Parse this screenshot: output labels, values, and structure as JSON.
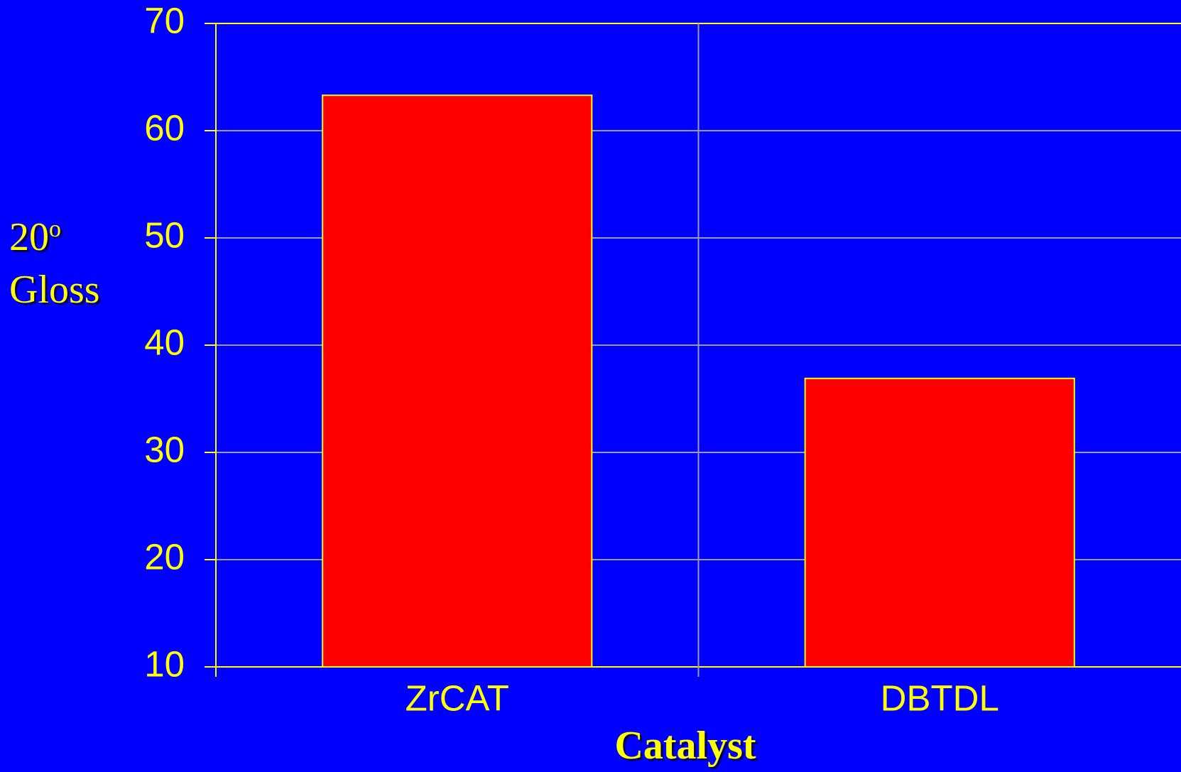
{
  "chart_data": {
    "type": "bar",
    "categories": [
      "ZrCAT",
      "DBTDL"
    ],
    "values": [
      63.3,
      36.9
    ],
    "color": "#ff0000",
    "x_label": "Catalyst",
    "y_label": {
      "text": "20",
      "superscript": "o",
      "second_line": "Gloss"
    },
    "ylim": [
      10,
      70
    ],
    "yticks": [
      10,
      20,
      30,
      40,
      50,
      60,
      70
    ],
    "grid": true
  }
}
